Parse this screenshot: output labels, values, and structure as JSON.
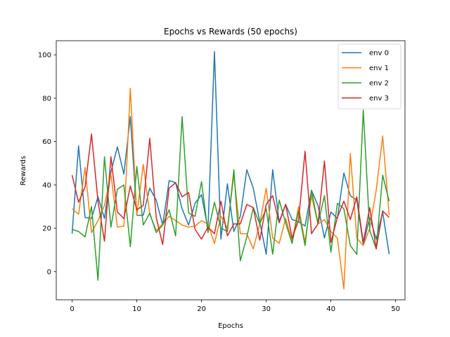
{
  "chart_data": {
    "type": "line",
    "title": "Epochs vs Rewards      (50 epochs)",
    "xlabel": "Epochs",
    "ylabel": "Rewards",
    "xlim": [
      -2.45,
      51.45
    ],
    "ylim": [
      -13,
      106.5
    ],
    "xticks": [
      0,
      10,
      20,
      30,
      40,
      50
    ],
    "yticks": [
      0,
      20,
      40,
      60,
      80,
      100
    ],
    "grid": false,
    "legend_position": "top-right",
    "x": [
      0,
      1,
      2,
      3,
      4,
      5,
      6,
      7,
      8,
      9,
      10,
      11,
      12,
      13,
      14,
      15,
      16,
      17,
      18,
      19,
      20,
      21,
      22,
      23,
      24,
      25,
      26,
      27,
      28,
      29,
      30,
      31,
      32,
      33,
      34,
      35,
      36,
      37,
      38,
      39,
      40,
      41,
      42,
      43,
      44,
      45,
      46,
      47,
      48,
      49
    ],
    "series": [
      {
        "name": "env 0",
        "color": "#1f77b4",
        "values": [
          17.5,
          58,
          25,
          24.5,
          34.5,
          24.5,
          46,
          57.5,
          45,
          71.5,
          26,
          26,
          38.5,
          33,
          21.5,
          42,
          41,
          29,
          21.5,
          31.5,
          35.5,
          19.5,
          101.5,
          15,
          40.5,
          18.5,
          25.5,
          47,
          38.5,
          23,
          8,
          47,
          23,
          31,
          24,
          23,
          21,
          37.5,
          30.5,
          15.5,
          27.5,
          24.5,
          45.5,
          35,
          33,
          12.5,
          25,
          15,
          27.5,
          8
        ]
      },
      {
        "name": "env 1",
        "color": "#ff7f0e",
        "values": [
          29,
          26.5,
          48,
          18,
          23.5,
          30.5,
          45,
          20.5,
          21,
          84.5,
          26,
          49.5,
          26.5,
          19,
          22,
          25.5,
          23.5,
          21.5,
          20.5,
          21,
          23.5,
          22,
          13,
          25.5,
          20,
          44.5,
          17.5,
          17.5,
          10.5,
          22,
          38.5,
          15.5,
          13,
          24.5,
          14,
          30,
          13.5,
          35,
          22,
          24,
          18.5,
          15.5,
          -8,
          54.5,
          15.5,
          12,
          20,
          37.5,
          62.5,
          26
        ]
      },
      {
        "name": "env 2",
        "color": "#2ca02c",
        "values": [
          19.5,
          18.5,
          16,
          30,
          -4,
          53,
          20.5,
          38,
          40,
          11.5,
          48.5,
          21.5,
          27,
          18,
          21.5,
          28.5,
          16.5,
          71.5,
          27,
          25.5,
          41.5,
          18,
          32,
          20,
          18.5,
          47,
          5,
          16,
          29.5,
          22,
          29,
          8,
          33,
          22.5,
          13,
          28,
          12,
          37.5,
          22,
          35,
          9,
          31.5,
          29,
          12,
          8,
          74.5,
          19,
          10.5,
          44.5,
          32.5
        ]
      },
      {
        "name": "env 3",
        "color": "#d62728",
        "values": [
          44.5,
          32,
          39,
          63.5,
          32.5,
          14,
          53,
          27.5,
          24.5,
          39.5,
          28.5,
          30.5,
          61.5,
          25,
          12.5,
          38.5,
          41,
          34.5,
          36.5,
          19.5,
          15,
          20.5,
          17.5,
          32.5,
          16.5,
          22,
          22,
          31,
          29.5,
          14.5,
          31,
          35,
          22.5,
          31,
          15.5,
          23.5,
          55.5,
          17.5,
          22,
          51,
          13.5,
          25,
          32.5,
          24,
          34.5,
          13.5,
          29.5,
          10.5,
          28,
          25
        ]
      }
    ]
  }
}
